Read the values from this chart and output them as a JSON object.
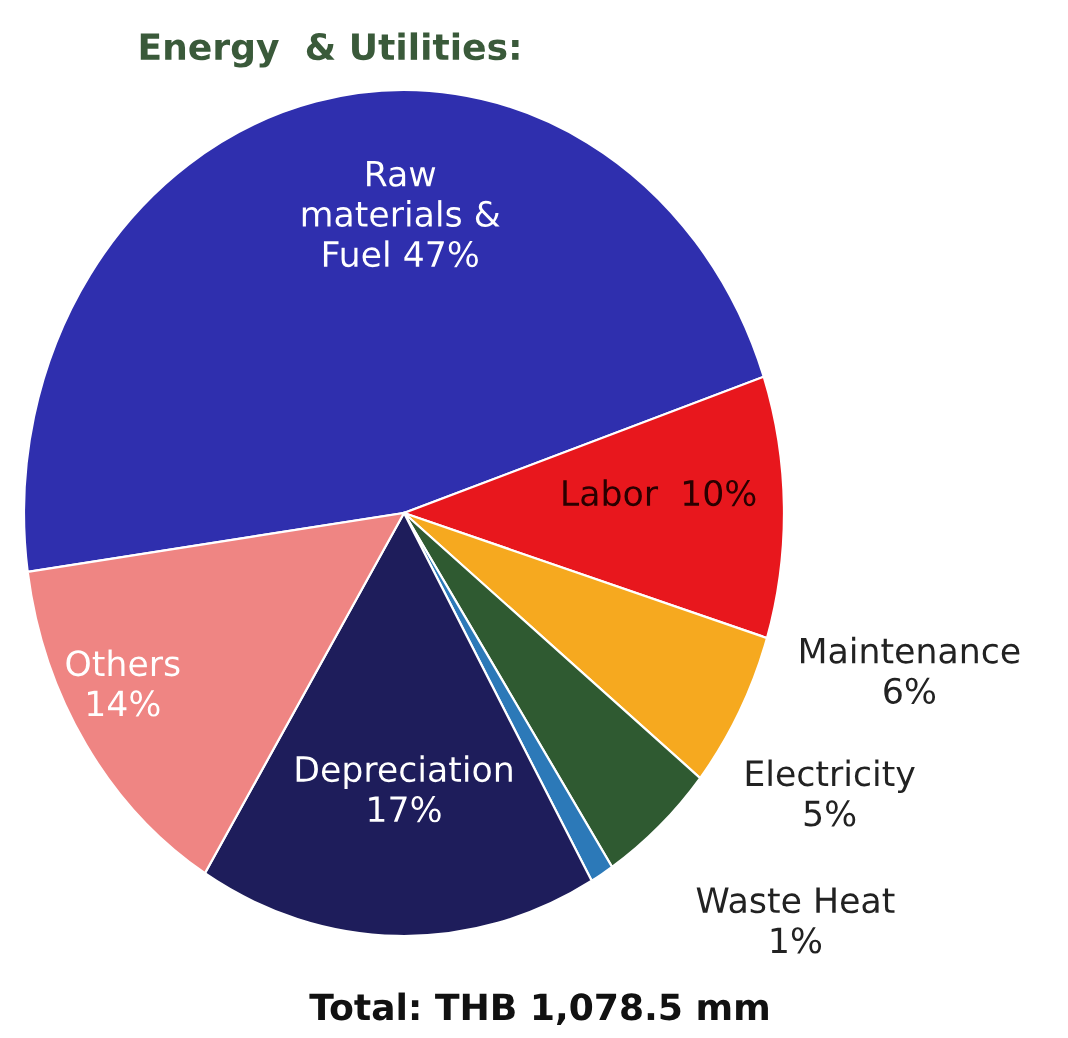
{
  "chart_data": {
    "type": "pie",
    "title": "Energy  & Utilities:",
    "categories": [
      "Raw\nmaterials &\nFuel",
      "Labor",
      "Maintenance",
      "Electricity",
      "Waste Heat",
      "Depreciation",
      "Others"
    ],
    "values": [
      47,
      10,
      6,
      5,
      1,
      17,
      14
    ],
    "value_labels": [
      "47%",
      "10%",
      "6%",
      "5%",
      "1%",
      "17%",
      "14%"
    ],
    "colors": [
      "#2f2fae",
      "#e8171d",
      "#f6a91f",
      "#2f5a31",
      "#2c79b8",
      "#1e1d5b",
      "#ef8583"
    ],
    "annotations": [
      "Total: THB 1,078.5 mm"
    ]
  }
}
